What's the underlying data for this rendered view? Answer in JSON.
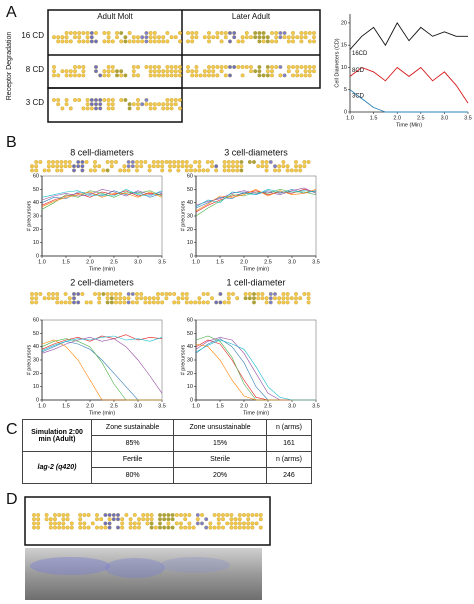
{
  "panel_labels": [
    "A",
    "B",
    "C",
    "D"
  ],
  "panel_a": {
    "column_headers": [
      "Adult Molt",
      "Later Adult"
    ],
    "row_labels": [
      "16 CD",
      "8 CD",
      "3 CD"
    ],
    "row_axis_label": "Receptor Degradation"
  },
  "chart_data": [
    {
      "type": "line",
      "xlabel": "Time (Min)",
      "ylabel": "Cell Diameters (CD)",
      "x": [
        1.0,
        1.25,
        1.5,
        1.75,
        2.0,
        2.25,
        2.5,
        2.75,
        3.0,
        3.25,
        3.5
      ],
      "xlim": [
        1,
        3.5
      ],
      "ylim": [
        0,
        22
      ],
      "xticks": [
        {
          "value": 1,
          "label": "1.0"
        },
        1.5,
        {
          "value": 2,
          "label": "2.0"
        },
        2.5,
        {
          "value": 3,
          "label": "3.0"
        },
        3.5
      ],
      "yticks": [
        0,
        5,
        10,
        15,
        20
      ],
      "series": [
        {
          "name": "16CD",
          "color": "#111111",
          "values": [
            14,
            17,
            19,
            15,
            20,
            16,
            19,
            17,
            18,
            17,
            17
          ]
        },
        {
          "name": "8CD",
          "color": "#d7191c",
          "values": [
            8,
            10,
            9,
            7,
            10,
            8,
            10,
            7,
            9,
            6,
            2
          ]
        },
        {
          "name": "3CD",
          "color": "#2b83ba",
          "values": [
            5,
            3,
            1,
            0,
            0,
            0,
            0,
            0,
            0,
            0,
            0
          ]
        }
      ]
    },
    {
      "type": "line",
      "title": "8 cell-diameters",
      "xlabel": "Time (min)",
      "ylabel": "# precursors",
      "x": [
        1.0,
        1.25,
        1.5,
        1.75,
        2.0,
        2.25,
        2.5,
        2.75,
        3.0,
        3.25,
        3.5
      ],
      "xlim": [
        1,
        3.5
      ],
      "ylim": [
        0,
        60
      ],
      "xticks": [
        {
          "value": 1,
          "label": "1.0"
        },
        1.5,
        {
          "value": 2,
          "label": "2.0"
        },
        2.5,
        {
          "value": 3,
          "label": "3.0"
        },
        3.5
      ],
      "yticks": [
        0,
        10,
        20,
        30,
        40,
        50,
        60
      ],
      "series": [
        {
          "color": "#e41a1c",
          "values": [
            38,
            42,
            45,
            47,
            44,
            48,
            46,
            49,
            45,
            47,
            46
          ]
        },
        {
          "color": "#377eb8",
          "values": [
            40,
            44,
            43,
            48,
            47,
            45,
            49,
            46,
            48,
            44,
            47
          ]
        },
        {
          "color": "#4daf4a",
          "values": [
            35,
            40,
            46,
            44,
            49,
            47,
            44,
            48,
            47,
            49,
            45
          ]
        },
        {
          "color": "#984ea3",
          "values": [
            42,
            45,
            47,
            45,
            46,
            50,
            48,
            45,
            49,
            46,
            48
          ]
        },
        {
          "color": "#ff7f00",
          "values": [
            37,
            41,
            44,
            46,
            48,
            44,
            47,
            47,
            44,
            48,
            44
          ]
        },
        {
          "color": "#17becf",
          "values": [
            44,
            46,
            48,
            49,
            45,
            46,
            45,
            50,
            46,
            45,
            49
          ]
        }
      ]
    },
    {
      "type": "line",
      "title": "3 cell-diameters",
      "xlabel": "Time (min)",
      "ylabel": "# precursors",
      "x": [
        1.0,
        1.25,
        1.5,
        1.75,
        2.0,
        2.25,
        2.5,
        2.75,
        3.0,
        3.25,
        3.5
      ],
      "xlim": [
        1,
        3.5
      ],
      "ylim": [
        0,
        60
      ],
      "xticks": [
        {
          "value": 1,
          "label": "1.0"
        },
        1.5,
        {
          "value": 2,
          "label": "2.0"
        },
        2.5,
        {
          "value": 3,
          "label": "3.0"
        },
        3.5
      ],
      "yticks": [
        0,
        10,
        20,
        30,
        40,
        50,
        60
      ],
      "series": [
        {
          "color": "#e41a1c",
          "values": [
            33,
            38,
            42,
            45,
            47,
            49,
            46,
            48,
            47,
            50,
            48
          ]
        },
        {
          "color": "#377eb8",
          "values": [
            36,
            40,
            44,
            43,
            48,
            46,
            49,
            47,
            50,
            47,
            49
          ]
        },
        {
          "color": "#4daf4a",
          "values": [
            30,
            36,
            41,
            46,
            45,
            48,
            47,
            50,
            48,
            48,
            46
          ]
        },
        {
          "color": "#984ea3",
          "values": [
            38,
            41,
            43,
            47,
            49,
            47,
            48,
            46,
            49,
            51,
            47
          ]
        },
        {
          "color": "#ff7f00",
          "values": [
            34,
            39,
            45,
            44,
            46,
            50,
            45,
            49,
            46,
            47,
            50
          ]
        },
        {
          "color": "#17becf",
          "values": [
            37,
            42,
            40,
            48,
            47,
            46,
            50,
            48,
            48,
            49,
            48
          ]
        }
      ]
    },
    {
      "type": "line",
      "title": "2 cell-diameters",
      "xlabel": "Time (min)",
      "ylabel": "# precursors",
      "x": [
        1.0,
        1.25,
        1.5,
        1.75,
        2.0,
        2.25,
        2.5,
        2.75,
        3.0,
        3.25,
        3.5
      ],
      "xlim": [
        1,
        3.5
      ],
      "ylim": [
        0,
        60
      ],
      "xticks": [
        {
          "value": 1,
          "label": "1.0"
        },
        1.5,
        {
          "value": 2,
          "label": "2.0"
        },
        2.5,
        {
          "value": 3,
          "label": "3.0"
        },
        3.5
      ],
      "yticks": [
        0,
        10,
        20,
        30,
        40,
        50,
        60
      ],
      "series": [
        {
          "color": "#e41a1c",
          "values": [
            38,
            42,
            45,
            47,
            44,
            48,
            46,
            49,
            45,
            47,
            46
          ]
        },
        {
          "color": "#377eb8",
          "values": [
            36,
            40,
            44,
            42,
            38,
            30,
            20,
            10,
            0,
            0,
            0
          ]
        },
        {
          "color": "#4daf4a",
          "values": [
            40,
            44,
            46,
            44,
            40,
            28,
            12,
            0,
            0,
            0,
            0
          ]
        },
        {
          "color": "#984ea3",
          "values": [
            35,
            38,
            42,
            45,
            47,
            44,
            46,
            40,
            30,
            18,
            5
          ]
        },
        {
          "color": "#ff7f00",
          "values": [
            42,
            45,
            40,
            30,
            15,
            0,
            0,
            0,
            0,
            0,
            0
          ]
        },
        {
          "color": "#17becf",
          "values": [
            37,
            41,
            44,
            46,
            45,
            47,
            48,
            45,
            46,
            44,
            47
          ]
        }
      ]
    },
    {
      "type": "line",
      "title": "1 cell-diameter",
      "xlabel": "Time (min)",
      "ylabel": "# precursors",
      "x": [
        1.0,
        1.25,
        1.5,
        1.75,
        2.0,
        2.25,
        2.5,
        2.75,
        3.0,
        3.25,
        3.5
      ],
      "xlim": [
        1,
        3.5
      ],
      "ylim": [
        0,
        60
      ],
      "xticks": [
        {
          "value": 1,
          "label": "1.0"
        },
        1.5,
        {
          "value": 2,
          "label": "2.0"
        },
        2.5,
        {
          "value": 3,
          "label": "3.0"
        },
        3.5
      ],
      "yticks": [
        0,
        10,
        20,
        30,
        40,
        50,
        60
      ],
      "series": [
        {
          "color": "#e41a1c",
          "values": [
            40,
            45,
            42,
            30,
            15,
            2,
            0,
            0,
            0,
            0,
            0
          ]
        },
        {
          "color": "#377eb8",
          "values": [
            35,
            42,
            46,
            40,
            28,
            10,
            0,
            0,
            0,
            0,
            0
          ]
        },
        {
          "color": "#4daf4a",
          "values": [
            45,
            48,
            44,
            32,
            12,
            0,
            0,
            0,
            0,
            0,
            0
          ]
        },
        {
          "color": "#984ea3",
          "values": [
            38,
            44,
            47,
            45,
            35,
            20,
            5,
            0,
            0,
            0,
            0
          ]
        },
        {
          "color": "#ff7f00",
          "values": [
            42,
            40,
            30,
            15,
            3,
            0,
            0,
            0,
            0,
            0,
            0
          ]
        },
        {
          "color": "#17becf",
          "values": [
            36,
            41,
            45,
            42,
            38,
            25,
            10,
            2,
            0,
            0,
            0
          ]
        }
      ]
    }
  ],
  "table": {
    "rows": [
      [
        "Simulation 2:00 min (Adult)",
        "Zone sustainable",
        "Zone unsustainable",
        "n (arms)"
      ],
      [
        "85%",
        "15%",
        "161"
      ],
      [
        "lag-2 (q420)",
        "Fertile",
        "Sterile",
        "n (arms)"
      ],
      [
        "80%",
        "20%",
        "246"
      ]
    ]
  }
}
